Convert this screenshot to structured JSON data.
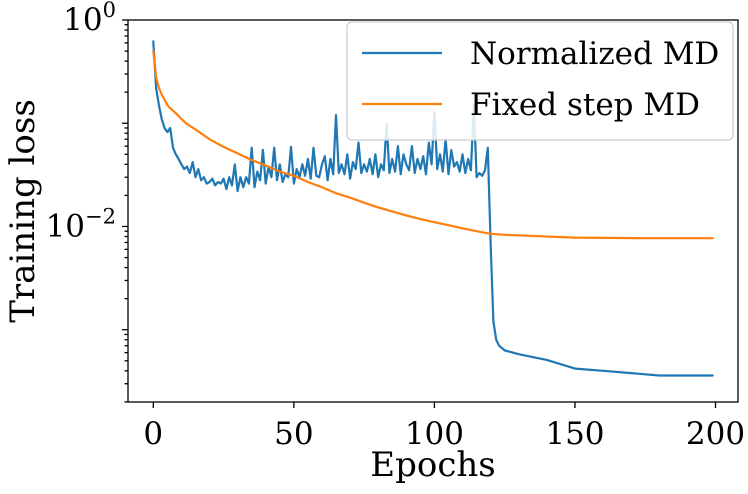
{
  "chart_data": {
    "type": "line",
    "title": "",
    "xlabel": "Epochs",
    "ylabel": "Training loss",
    "yscale": "log",
    "xlim": [
      -9,
      208
    ],
    "ylim_log10": [
      -3.7,
      0
    ],
    "xticks": [
      {
        "value": 0,
        "label": "0"
      },
      {
        "value": 50,
        "label": "50"
      },
      {
        "value": 100,
        "label": "100"
      },
      {
        "value": 150,
        "label": "150"
      },
      {
        "value": 200,
        "label": "200"
      }
    ],
    "yticks": [
      {
        "log10": 0,
        "base": "10",
        "exp": "0"
      },
      {
        "log10": -2,
        "base": "10",
        "exp": "−2"
      }
    ],
    "legend_position": "top-right",
    "grid": false,
    "series": [
      {
        "name": "Normalized MD",
        "color": "#1f77b4",
        "x": [
          0,
          1,
          2,
          3,
          4,
          5,
          6,
          7,
          8,
          9,
          10,
          11,
          12,
          13,
          14,
          15,
          16,
          17,
          18,
          19,
          20,
          21,
          22,
          23,
          24,
          25,
          26,
          27,
          28,
          29,
          30,
          31,
          32,
          33,
          34,
          35,
          36,
          37,
          38,
          39,
          40,
          41,
          42,
          43,
          44,
          45,
          46,
          47,
          48,
          49,
          50,
          51,
          52,
          53,
          54,
          55,
          56,
          57,
          58,
          59,
          60,
          61,
          62,
          63,
          64,
          65,
          66,
          67,
          68,
          69,
          70,
          71,
          72,
          73,
          74,
          75,
          76,
          77,
          78,
          79,
          80,
          81,
          82,
          83,
          84,
          85,
          86,
          87,
          88,
          89,
          90,
          91,
          92,
          93,
          94,
          95,
          96,
          97,
          98,
          99,
          100,
          101,
          102,
          103,
          104,
          105,
          106,
          107,
          108,
          109,
          110,
          111,
          112,
          113,
          114,
          115,
          116,
          117,
          118,
          119,
          120,
          121,
          122,
          123,
          125,
          130,
          140,
          150,
          160,
          170,
          180,
          190,
          199
        ],
        "y": [
          0.62,
          0.22,
          0.15,
          0.11,
          0.09,
          0.082,
          0.09,
          0.058,
          0.05,
          0.045,
          0.04,
          0.036,
          0.038,
          0.033,
          0.042,
          0.03,
          0.036,
          0.028,
          0.03,
          0.026,
          0.027,
          0.029,
          0.025,
          0.027,
          0.026,
          0.029,
          0.023,
          0.03,
          0.025,
          0.04,
          0.022,
          0.03,
          0.024,
          0.03,
          0.026,
          0.058,
          0.024,
          0.034,
          0.028,
          0.055,
          0.026,
          0.038,
          0.03,
          0.058,
          0.028,
          0.04,
          0.027,
          0.032,
          0.03,
          0.059,
          0.026,
          0.036,
          0.03,
          0.04,
          0.031,
          0.045,
          0.029,
          0.058,
          0.031,
          0.03,
          0.04,
          0.048,
          0.028,
          0.045,
          0.032,
          0.12,
          0.033,
          0.04,
          0.032,
          0.05,
          0.029,
          0.042,
          0.036,
          0.065,
          0.033,
          0.04,
          0.034,
          0.045,
          0.032,
          0.05,
          0.03,
          0.04,
          0.035,
          0.1,
          0.033,
          0.045,
          0.034,
          0.06,
          0.032,
          0.05,
          0.04,
          0.035,
          0.06,
          0.033,
          0.045,
          0.036,
          0.048,
          0.032,
          0.065,
          0.04,
          0.13,
          0.036,
          0.05,
          0.034,
          0.07,
          0.032,
          0.055,
          0.038,
          0.042,
          0.034,
          0.05,
          0.033,
          0.045,
          0.035,
          0.15,
          0.03,
          0.033,
          0.031,
          0.035,
          0.058,
          0.007,
          0.0012,
          0.0008,
          0.0007,
          0.00063,
          0.00058,
          0.00051,
          0.00042,
          0.0004,
          0.00038,
          0.00036,
          0.00036,
          0.00036
        ]
      },
      {
        "name": "Fixed step MD",
        "color": "#ff7f0e",
        "x": [
          0,
          1,
          2,
          3,
          4,
          5,
          6,
          8,
          10,
          12,
          15,
          20,
          25,
          30,
          35,
          40,
          45,
          50,
          55,
          60,
          65,
          70,
          75,
          80,
          85,
          90,
          95,
          100,
          105,
          110,
          115,
          120,
          125,
          150,
          175,
          199
        ],
        "y": [
          0.5,
          0.28,
          0.22,
          0.19,
          0.17,
          0.15,
          0.14,
          0.125,
          0.11,
          0.098,
          0.087,
          0.07,
          0.059,
          0.051,
          0.044,
          0.039,
          0.034,
          0.031,
          0.027,
          0.024,
          0.021,
          0.019,
          0.017,
          0.0153,
          0.014,
          0.0128,
          0.0118,
          0.011,
          0.0103,
          0.0096,
          0.009,
          0.0085,
          0.0083,
          0.0078,
          0.0077,
          0.0077
        ]
      }
    ]
  }
}
